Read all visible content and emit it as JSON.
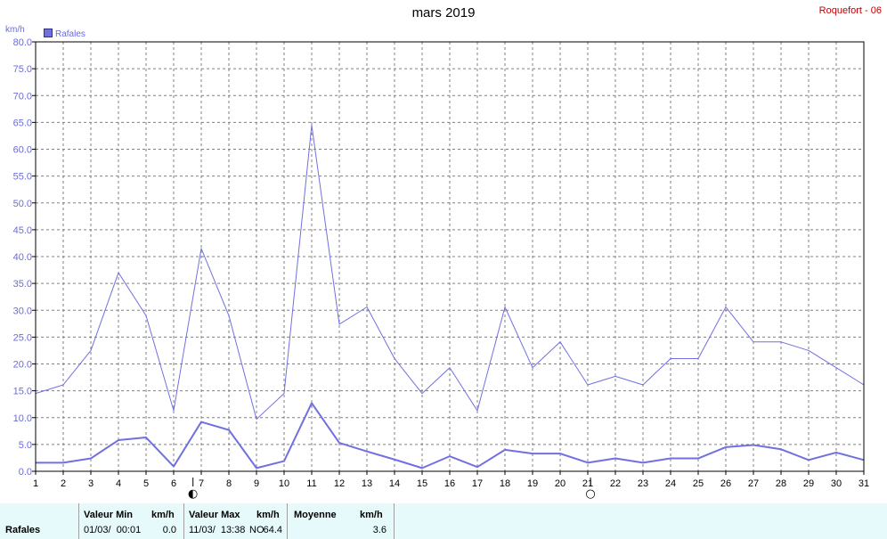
{
  "title": "mars 2019",
  "station": "Roquefort - 06",
  "unit_label": "km/h",
  "legend_label": "Rafales",
  "colors": {
    "series": "#7070e0",
    "axis_text": "#6a6ae0",
    "station": "#c00000",
    "footer_bg": "#e6f9fb"
  },
  "moon_phases": [
    {
      "day": 6.7,
      "icon": "new-moon-icon",
      "glyph": "◐"
    },
    {
      "day": 21.1,
      "icon": "full-moon-icon",
      "glyph": "○"
    }
  ],
  "chart_data": {
    "type": "line",
    "x": [
      1,
      2,
      3,
      4,
      5,
      6,
      7,
      8,
      9,
      10,
      11,
      12,
      13,
      14,
      15,
      16,
      17,
      18,
      19,
      20,
      21,
      22,
      23,
      24,
      25,
      26,
      27,
      28,
      29,
      30,
      31
    ],
    "xlim": [
      1,
      31
    ],
    "ylim": [
      0,
      80
    ],
    "ytick_step": 5,
    "grid": true,
    "series": [
      {
        "name": "Rafales",
        "values": [
          14.5,
          16.1,
          22.5,
          37.0,
          29.0,
          11.3,
          41.5,
          29.0,
          9.7,
          14.5,
          64.5,
          27.4,
          30.6,
          21.0,
          14.5,
          19.3,
          11.3,
          30.6,
          19.3,
          24.1,
          16.1,
          17.7,
          16.1,
          21.0,
          21.0,
          30.6,
          24.1,
          24.1,
          22.5,
          19.3,
          16.1
        ]
      },
      {
        "name": "",
        "values": [
          1.6,
          1.6,
          2.4,
          5.8,
          6.3,
          0.9,
          9.2,
          7.7,
          0.6,
          1.9,
          12.7,
          5.3,
          3.7,
          2.2,
          0.6,
          2.8,
          0.8,
          4.0,
          3.3,
          3.3,
          1.6,
          2.4,
          1.6,
          2.4,
          2.4,
          4.5,
          4.9,
          4.1,
          2.1,
          3.5,
          2.1
        ]
      }
    ]
  },
  "footer": {
    "row_label": "Rafales",
    "min_header": "Valeur Min",
    "min_unit": "km/h",
    "min_date": "01/03/  00:01",
    "min_value": "0.0",
    "max_header": "Valeur Max",
    "max_unit": "km/h",
    "max_date": "11/03/  13:38",
    "max_dir": "NO",
    "max_value": "64.4",
    "avg_header": "Moyenne",
    "avg_unit": "km/h",
    "avg_value": "3.6"
  }
}
